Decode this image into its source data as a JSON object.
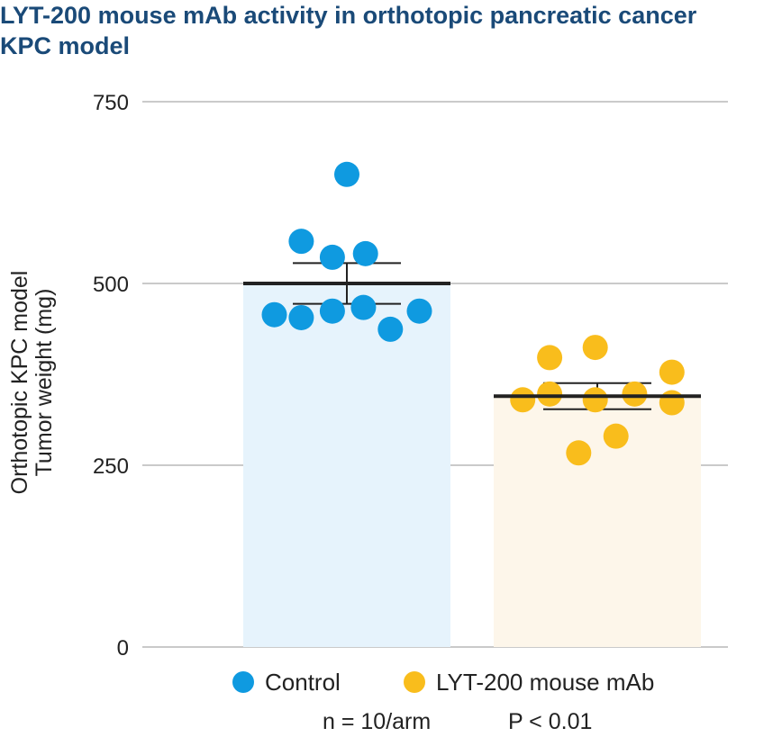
{
  "title_lines": [
    "LYT-200 mouse mAb activity in orthotopic pancreatic cancer",
    "KPC model"
  ],
  "colors": {
    "title": "#1a4a78",
    "control": "#0f9ae0",
    "treatment": "#f9bd1c",
    "control_bar": "#e6f3fc",
    "treatment_bar": "#fdf6ea",
    "grid": "#aaaaaa",
    "mean_line": "#222222"
  },
  "chart_data": {
    "type": "bar",
    "title": "LYT-200 mouse mAb activity in orthotopic pancreatic cancer KPC model",
    "xlabel": "",
    "ylabel_lines": [
      "Orthotopic KPC model",
      "Tumor weight (mg)"
    ],
    "ylim": [
      0,
      750
    ],
    "yticks": [
      0,
      250,
      500,
      750
    ],
    "grid": true,
    "categories": [
      "Control",
      "LYT-200 mouse mAb"
    ],
    "series": [
      {
        "name": "Control",
        "mean": 500,
        "sem_low": 472,
        "sem_high": 528,
        "points": [
          {
            "jitter": 0.0,
            "value": 650
          },
          {
            "jitter": -0.22,
            "value": 558
          },
          {
            "jitter": -0.07,
            "value": 536
          },
          {
            "jitter": 0.09,
            "value": 541
          },
          {
            "jitter": -0.35,
            "value": 457
          },
          {
            "jitter": -0.22,
            "value": 453
          },
          {
            "jitter": -0.07,
            "value": 462
          },
          {
            "jitter": 0.08,
            "value": 467
          },
          {
            "jitter": 0.21,
            "value": 437
          },
          {
            "jitter": 0.35,
            "value": 462
          }
        ]
      },
      {
        "name": "LYT-200 mouse mAb",
        "mean": 345,
        "sem_low": 327,
        "sem_high": 363,
        "points": [
          {
            "jitter": -0.36,
            "value": 340
          },
          {
            "jitter": -0.23,
            "value": 398
          },
          {
            "jitter": -0.23,
            "value": 348
          },
          {
            "jitter": -0.09,
            "value": 267
          },
          {
            "jitter": -0.01,
            "value": 412
          },
          {
            "jitter": -0.01,
            "value": 340
          },
          {
            "jitter": 0.09,
            "value": 290
          },
          {
            "jitter": 0.18,
            "value": 348
          },
          {
            "jitter": 0.36,
            "value": 378
          },
          {
            "jitter": 0.36,
            "value": 336
          }
        ]
      }
    ]
  },
  "legend": [
    {
      "label": "Control"
    },
    {
      "label": "LYT-200 mouse mAb"
    }
  ],
  "footnote": {
    "n": "n = 10/arm",
    "p": "P < 0.01"
  }
}
